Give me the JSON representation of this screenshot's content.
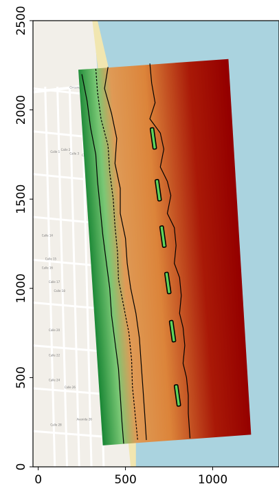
{
  "chart_data": {
    "type": "heatmap",
    "title": "",
    "xlabel": "",
    "ylabel": "",
    "xlim": [
      -30,
      1380
    ],
    "ylim": [
      0,
      2500
    ],
    "x_ticks": [
      0,
      500,
      1000
    ],
    "y_ticks": [
      0,
      500,
      1000,
      1500,
      2000,
      2500
    ],
    "x_tick_labels": [
      "0",
      "500",
      "1000"
    ],
    "y_tick_labels": [
      "0",
      "500",
      "1000",
      "1500",
      "2000",
      "2500"
    ],
    "grid": false,
    "legend": "none",
    "colormap": {
      "land_low": "#1f8f3a",
      "land_high": "#7fd07a",
      "shore": "#e9a15a",
      "mid": "#e58a3d",
      "deep": "#b01a08",
      "deepest": "#9b0000"
    },
    "basemap": {
      "water": "#aad3df",
      "land": "#f2efe9",
      "street_block": "#e0ddd8",
      "beach": "#f1e6b0",
      "labels": [
        "Circunvalación Norte",
        "Calle 1",
        "Calle 2",
        "Calle 3",
        "Calle 4",
        "Calle 14",
        "Calle 15",
        "Calle 16",
        "Calle 17",
        "Calle 18",
        "Calle 20",
        "Calle 22",
        "Calle 24",
        "Calle 26",
        "Calle 28",
        "Avenida 26"
      ]
    },
    "grid_domain": {
      "corners": [
        [
          230,
          2225
        ],
        [
          1090,
          2285
        ],
        [
          1220,
          180
        ],
        [
          370,
          120
        ]
      ]
    },
    "contours": [
      {
        "style": "solid",
        "points": [
          [
            250,
            2200
          ],
          [
            280,
            2050
          ],
          [
            300,
            1900
          ],
          [
            330,
            1750
          ],
          [
            340,
            1600
          ],
          [
            355,
            1450
          ],
          [
            370,
            1300
          ],
          [
            390,
            1150
          ],
          [
            410,
            1000
          ],
          [
            420,
            850
          ],
          [
            440,
            700
          ],
          [
            460,
            550
          ],
          [
            470,
            400
          ],
          [
            480,
            250
          ],
          [
            490,
            130
          ]
        ]
      },
      {
        "style": "dashed",
        "points": [
          [
            330,
            2230
          ],
          [
            340,
            2100
          ],
          [
            360,
            1950
          ],
          [
            400,
            1800
          ],
          [
            410,
            1650
          ],
          [
            430,
            1500
          ],
          [
            440,
            1350
          ],
          [
            455,
            1200
          ],
          [
            460,
            1050
          ],
          [
            490,
            900
          ],
          [
            520,
            750
          ],
          [
            535,
            600
          ],
          [
            540,
            450
          ],
          [
            555,
            300
          ],
          [
            570,
            150
          ]
        ]
      },
      {
        "style": "solid",
        "points": [
          [
            400,
            2240
          ],
          [
            380,
            2120
          ],
          [
            420,
            1980
          ],
          [
            450,
            1840
          ],
          [
            440,
            1700
          ],
          [
            470,
            1560
          ],
          [
            470,
            1420
          ],
          [
            500,
            1280
          ],
          [
            510,
            1140
          ],
          [
            530,
            1000
          ],
          [
            560,
            860
          ],
          [
            580,
            720
          ],
          [
            590,
            580
          ],
          [
            600,
            440
          ],
          [
            610,
            300
          ],
          [
            620,
            150
          ]
        ]
      },
      {
        "style": "solid",
        "points": [
          [
            640,
            2260
          ],
          [
            650,
            2150
          ],
          [
            670,
            2040
          ],
          [
            640,
            1950
          ],
          [
            700,
            1870
          ],
          [
            720,
            1780
          ],
          [
            700,
            1680
          ],
          [
            740,
            1600
          ],
          [
            760,
            1520
          ],
          [
            740,
            1420
          ],
          [
            780,
            1340
          ],
          [
            790,
            1240
          ],
          [
            780,
            1140
          ],
          [
            810,
            1060
          ],
          [
            820,
            960
          ],
          [
            810,
            860
          ],
          [
            830,
            780
          ],
          [
            840,
            680
          ],
          [
            830,
            580
          ],
          [
            850,
            500
          ],
          [
            860,
            400
          ],
          [
            860,
            300
          ],
          [
            870,
            160
          ]
        ]
      }
    ],
    "structures": [
      {
        "x": [
          650,
          670
        ],
        "y": [
          1780,
          1900
        ]
      },
      {
        "x": [
          678,
          698
        ],
        "y": [
          1490,
          1610
        ]
      },
      {
        "x": [
          705,
          725
        ],
        "y": [
          1230,
          1350
        ]
      },
      {
        "x": [
          733,
          753
        ],
        "y": [
          970,
          1090
        ]
      },
      {
        "x": [
          760,
          780
        ],
        "y": [
          700,
          820
        ]
      },
      {
        "x": [
          788,
          808
        ],
        "y": [
          340,
          460
        ]
      }
    ]
  }
}
